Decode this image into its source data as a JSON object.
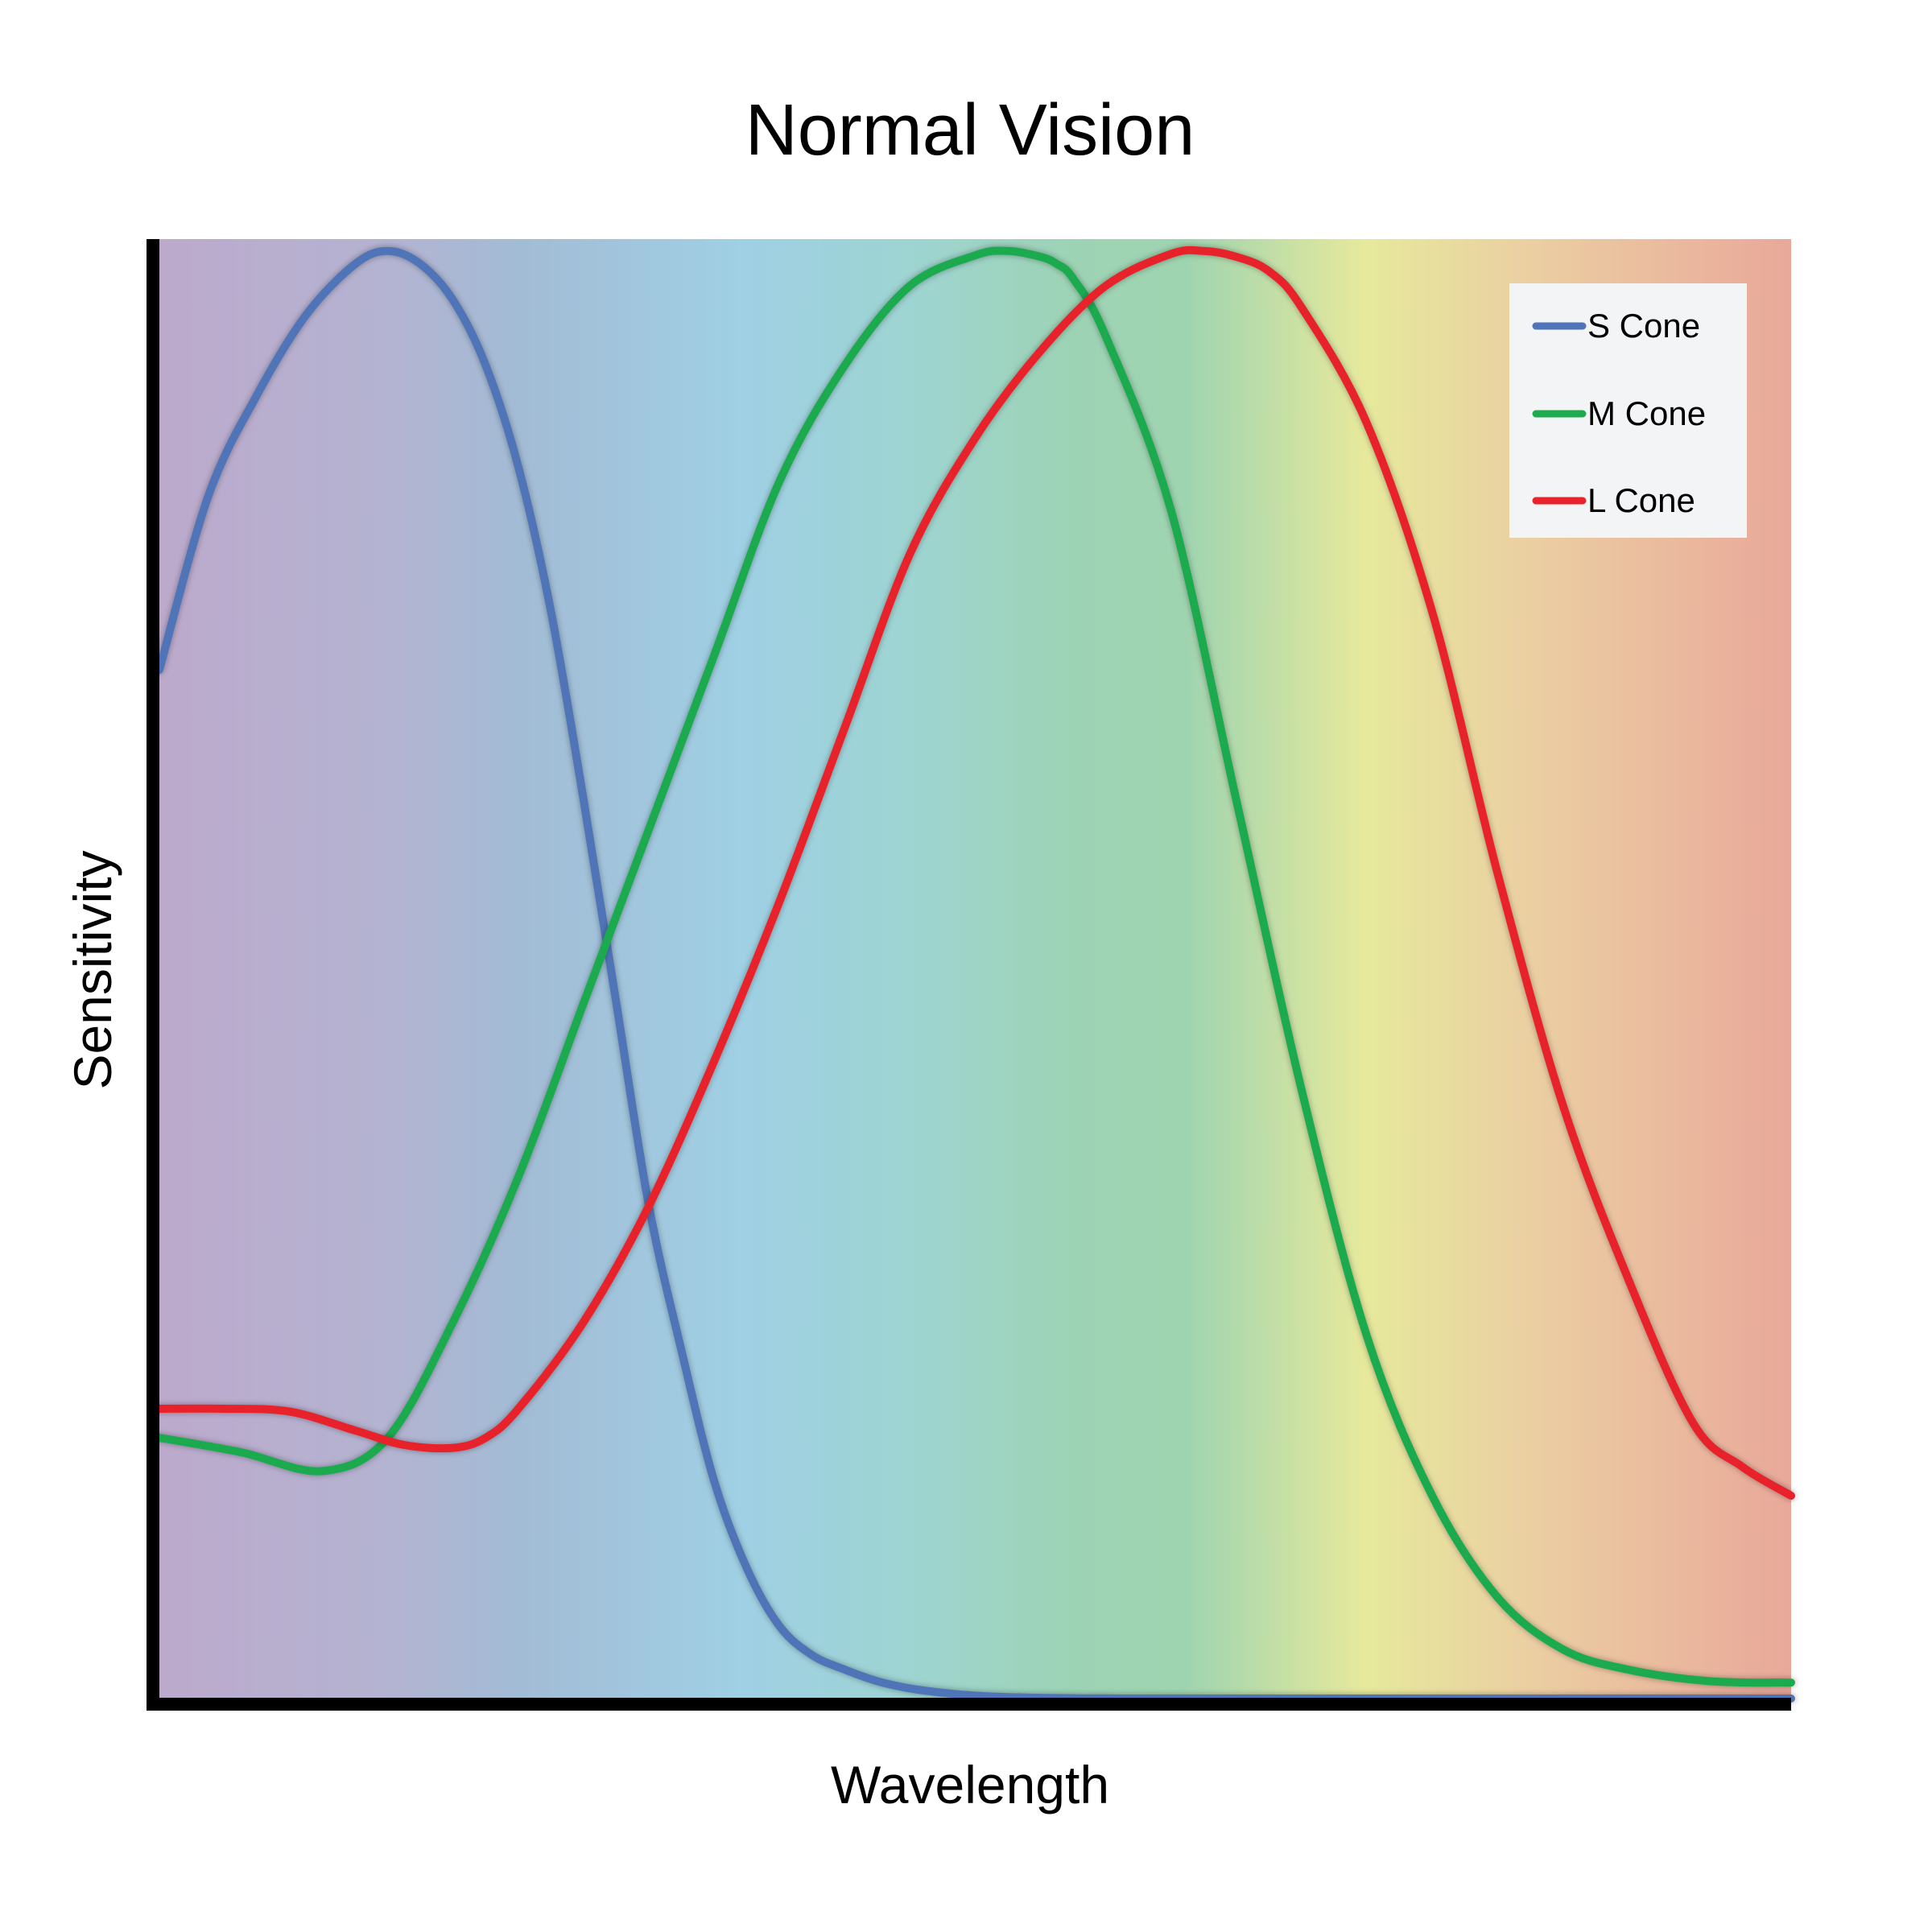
{
  "chart_data": {
    "type": "line",
    "title": "Normal Vision",
    "xlabel": "Wavelength",
    "ylabel": "Sensitivity",
    "xlim": [
      0,
      100
    ],
    "ylim": [
      0,
      1
    ],
    "grid": false,
    "legend_position": "top-right",
    "background": "visible spectrum gradient (violet to red)",
    "spectrum_colors": [
      "#bda9cc",
      "#b4b3d1",
      "#a1bdd6",
      "#9fd0e4",
      "#9ed3c8",
      "#9dd3b5",
      "#e6e99c",
      "#ebc8a3",
      "#e9a89a"
    ],
    "series": [
      {
        "name": "S Cone",
        "color": "#4f74b8",
        "x": [
          0,
          3,
          6,
          9,
          12,
          14,
          16,
          18,
          20,
          22,
          24,
          26,
          28,
          30,
          32,
          34,
          36,
          38,
          40,
          42,
          44,
          46,
          48,
          50,
          52,
          54,
          56,
          58,
          60,
          65,
          70,
          80,
          90,
          100
        ],
        "y": [
          0.71,
          0.83,
          0.9,
          0.955,
          0.99,
          0.999,
          0.99,
          0.965,
          0.92,
          0.85,
          0.75,
          0.62,
          0.48,
          0.34,
          0.24,
          0.15,
          0.09,
          0.05,
          0.03,
          0.02,
          0.012,
          0.007,
          0.004,
          0.002,
          0.001,
          0.0005,
          0.0002,
          0.0001,
          0,
          0,
          0,
          0,
          0,
          0
        ]
      },
      {
        "name": "M Cone",
        "color": "#1faa4f",
        "x": [
          0,
          5,
          10,
          14,
          18,
          22,
          26,
          30,
          34,
          38,
          42,
          46,
          50,
          52,
          54,
          55,
          56,
          58,
          62,
          66,
          70,
          74,
          78,
          82,
          86,
          90,
          95,
          100
        ],
        "y": [
          0.18,
          0.17,
          0.157,
          0.18,
          0.26,
          0.36,
          0.48,
          0.6,
          0.72,
          0.84,
          0.92,
          0.975,
          0.996,
          0.999,
          0.995,
          0.99,
          0.98,
          0.94,
          0.82,
          0.62,
          0.42,
          0.25,
          0.14,
          0.07,
          0.034,
          0.02,
          0.012,
          0.011
        ]
      },
      {
        "name": "L Cone",
        "color": "#e8232b",
        "x": [
          0,
          4,
          8,
          12,
          15,
          18,
          20,
          22,
          26,
          30,
          34,
          38,
          42,
          46,
          50,
          54,
          58,
          62,
          64,
          66,
          68,
          70,
          74,
          78,
          82,
          86,
          90,
          94,
          97,
          100
        ],
        "y": [
          0.2,
          0.2,
          0.198,
          0.185,
          0.175,
          0.173,
          0.18,
          0.2,
          0.26,
          0.34,
          0.44,
          0.55,
          0.67,
          0.79,
          0.87,
          0.93,
          0.975,
          0.997,
          0.999,
          0.995,
          0.985,
          0.96,
          0.88,
          0.75,
          0.57,
          0.41,
          0.29,
          0.19,
          0.16,
          0.14
        ]
      }
    ]
  }
}
